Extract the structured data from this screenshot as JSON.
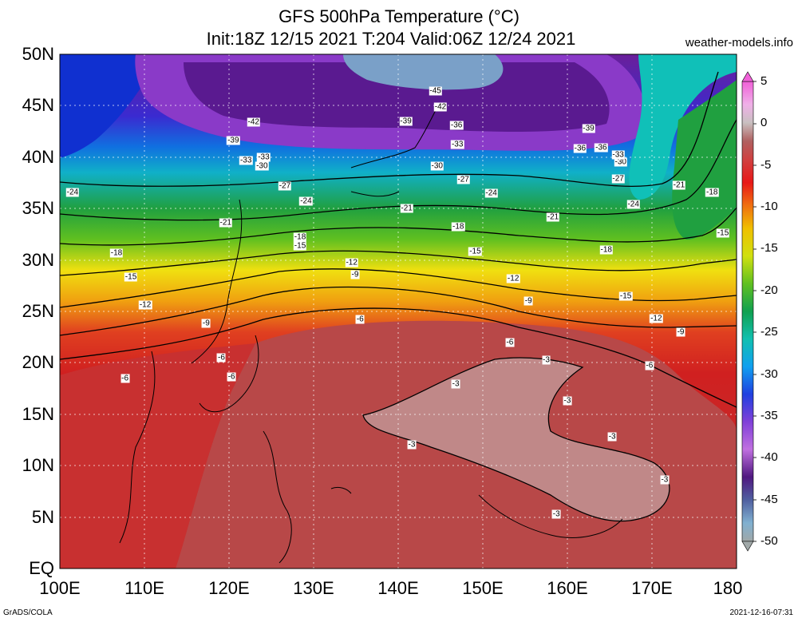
{
  "header": {
    "title_line1": "GFS 500hPa Temperature (°C)",
    "title_line2": "Init:18Z 12/15 2021 T:204 Valid:06Z 12/24 2021",
    "site": "weather-models.info"
  },
  "footer": {
    "left": "GrADS/COLA",
    "right": "2021-12-16-07:31"
  },
  "map": {
    "lat_labels": [
      "50N",
      "45N",
      "40N",
      "35N",
      "30N",
      "25N",
      "20N",
      "15N",
      "10N",
      "5N",
      "EQ"
    ],
    "lon_labels": [
      "100E",
      "110E",
      "120E",
      "130E",
      "140E",
      "150E",
      "160E",
      "170E",
      "180"
    ],
    "contour_labels": [
      {
        "text": "-45",
        "lon": 144.4,
        "lat": 46.4
      },
      {
        "text": "-42",
        "lon": 145.0,
        "lat": 44.9
      },
      {
        "text": "-42",
        "lon": 122.9,
        "lat": 43.4
      },
      {
        "text": "-39",
        "lon": 140.9,
        "lat": 43.5
      },
      {
        "text": "-36",
        "lon": 146.9,
        "lat": 43.1
      },
      {
        "text": "-39",
        "lon": 162.5,
        "lat": 42.8
      },
      {
        "text": "-39",
        "lon": 120.5,
        "lat": 41.6
      },
      {
        "text": "-33",
        "lon": 147.0,
        "lat": 41.2
      },
      {
        "text": "-36",
        "lon": 161.5,
        "lat": 40.8
      },
      {
        "text": "-36",
        "lon": 164.0,
        "lat": 40.9
      },
      {
        "text": "-33",
        "lon": 124.1,
        "lat": 40.0
      },
      {
        "text": "-33",
        "lon": 122.0,
        "lat": 39.7
      },
      {
        "text": "-30",
        "lon": 123.9,
        "lat": 39.1
      },
      {
        "text": "-30",
        "lon": 144.6,
        "lat": 39.1
      },
      {
        "text": "-30",
        "lon": 166.3,
        "lat": 39.5
      },
      {
        "text": "-33",
        "lon": 166.0,
        "lat": 40.2
      },
      {
        "text": "-27",
        "lon": 147.7,
        "lat": 37.8
      },
      {
        "text": "-27",
        "lon": 166.0,
        "lat": 37.9
      },
      {
        "text": "-21",
        "lon": 173.2,
        "lat": 37.3
      },
      {
        "text": "-18",
        "lon": 177.1,
        "lat": 36.6
      },
      {
        "text": "-24",
        "lon": 101.5,
        "lat": 36.6
      },
      {
        "text": "-27",
        "lon": 126.6,
        "lat": 37.2
      },
      {
        "text": "-24",
        "lon": 129.1,
        "lat": 35.7
      },
      {
        "text": "-24",
        "lon": 151.0,
        "lat": 36.5
      },
      {
        "text": "-24",
        "lon": 167.8,
        "lat": 35.4
      },
      {
        "text": "-21",
        "lon": 141.0,
        "lat": 35.0
      },
      {
        "text": "-21",
        "lon": 158.3,
        "lat": 34.2
      },
      {
        "text": "-21",
        "lon": 119.6,
        "lat": 33.6
      },
      {
        "text": "-18",
        "lon": 147.1,
        "lat": 33.2
      },
      {
        "text": "-15",
        "lon": 178.4,
        "lat": 32.6
      },
      {
        "text": "-18",
        "lon": 128.4,
        "lat": 32.2
      },
      {
        "text": "-15",
        "lon": 128.4,
        "lat": 31.4
      },
      {
        "text": "-18",
        "lon": 106.7,
        "lat": 30.7
      },
      {
        "text": "-18",
        "lon": 164.6,
        "lat": 31.0
      },
      {
        "text": "-15",
        "lon": 149.1,
        "lat": 30.8
      },
      {
        "text": "-12",
        "lon": 134.5,
        "lat": 29.7
      },
      {
        "text": "-9",
        "lon": 134.9,
        "lat": 28.6
      },
      {
        "text": "-15",
        "lon": 108.4,
        "lat": 28.3
      },
      {
        "text": "-12",
        "lon": 153.6,
        "lat": 28.2
      },
      {
        "text": "-15",
        "lon": 166.9,
        "lat": 26.5
      },
      {
        "text": "-9",
        "lon": 155.4,
        "lat": 26.0
      },
      {
        "text": "-12",
        "lon": 110.1,
        "lat": 25.6
      },
      {
        "text": "-12",
        "lon": 170.5,
        "lat": 24.3
      },
      {
        "text": "-6",
        "lon": 135.5,
        "lat": 24.2
      },
      {
        "text": "-9",
        "lon": 117.3,
        "lat": 23.8
      },
      {
        "text": "-9",
        "lon": 173.4,
        "lat": 23.0
      },
      {
        "text": "-6",
        "lon": 153.2,
        "lat": 22.0
      },
      {
        "text": "-6",
        "lon": 119.1,
        "lat": 20.5
      },
      {
        "text": "-3",
        "lon": 157.5,
        "lat": 20.3
      },
      {
        "text": "-6",
        "lon": 169.7,
        "lat": 19.7
      },
      {
        "text": "-6",
        "lon": 107.7,
        "lat": 18.5
      },
      {
        "text": "-6",
        "lon": 120.3,
        "lat": 18.6
      },
      {
        "text": "-3",
        "lon": 146.8,
        "lat": 17.9
      },
      {
        "text": "-3",
        "lon": 160.0,
        "lat": 16.3
      },
      {
        "text": "-3",
        "lon": 165.3,
        "lat": 12.8
      },
      {
        "text": "-3",
        "lon": 141.6,
        "lat": 12.0
      },
      {
        "text": "-3",
        "lon": 171.5,
        "lat": 8.6
      },
      {
        "text": "-3",
        "lon": 158.7,
        "lat": 5.3
      }
    ]
  },
  "colorbar": {
    "labels": [
      "5",
      "0",
      "-5",
      "-10",
      "-15",
      "-20",
      "-25",
      "-30",
      "-35",
      "-40",
      "-45",
      "-50"
    ]
  },
  "colors": {
    "scale": [
      "#f08ed8",
      "#f0c8e8",
      "#d0b0b0",
      "#b87070",
      "#c85050",
      "#d83020",
      "#ee4020",
      "#f07010",
      "#f0a000",
      "#f0d000",
      "#c8e020",
      "#80cc20",
      "#30b030",
      "#10a060",
      "#10b0a0",
      "#10c8d0",
      "#10a0f0",
      "#2060e0",
      "#3020d0",
      "#8040d0",
      "#a060d8",
      "#6020a0",
      "#506090",
      "#7090c8",
      "#80b8d8",
      "#a0b0b0"
    ]
  }
}
